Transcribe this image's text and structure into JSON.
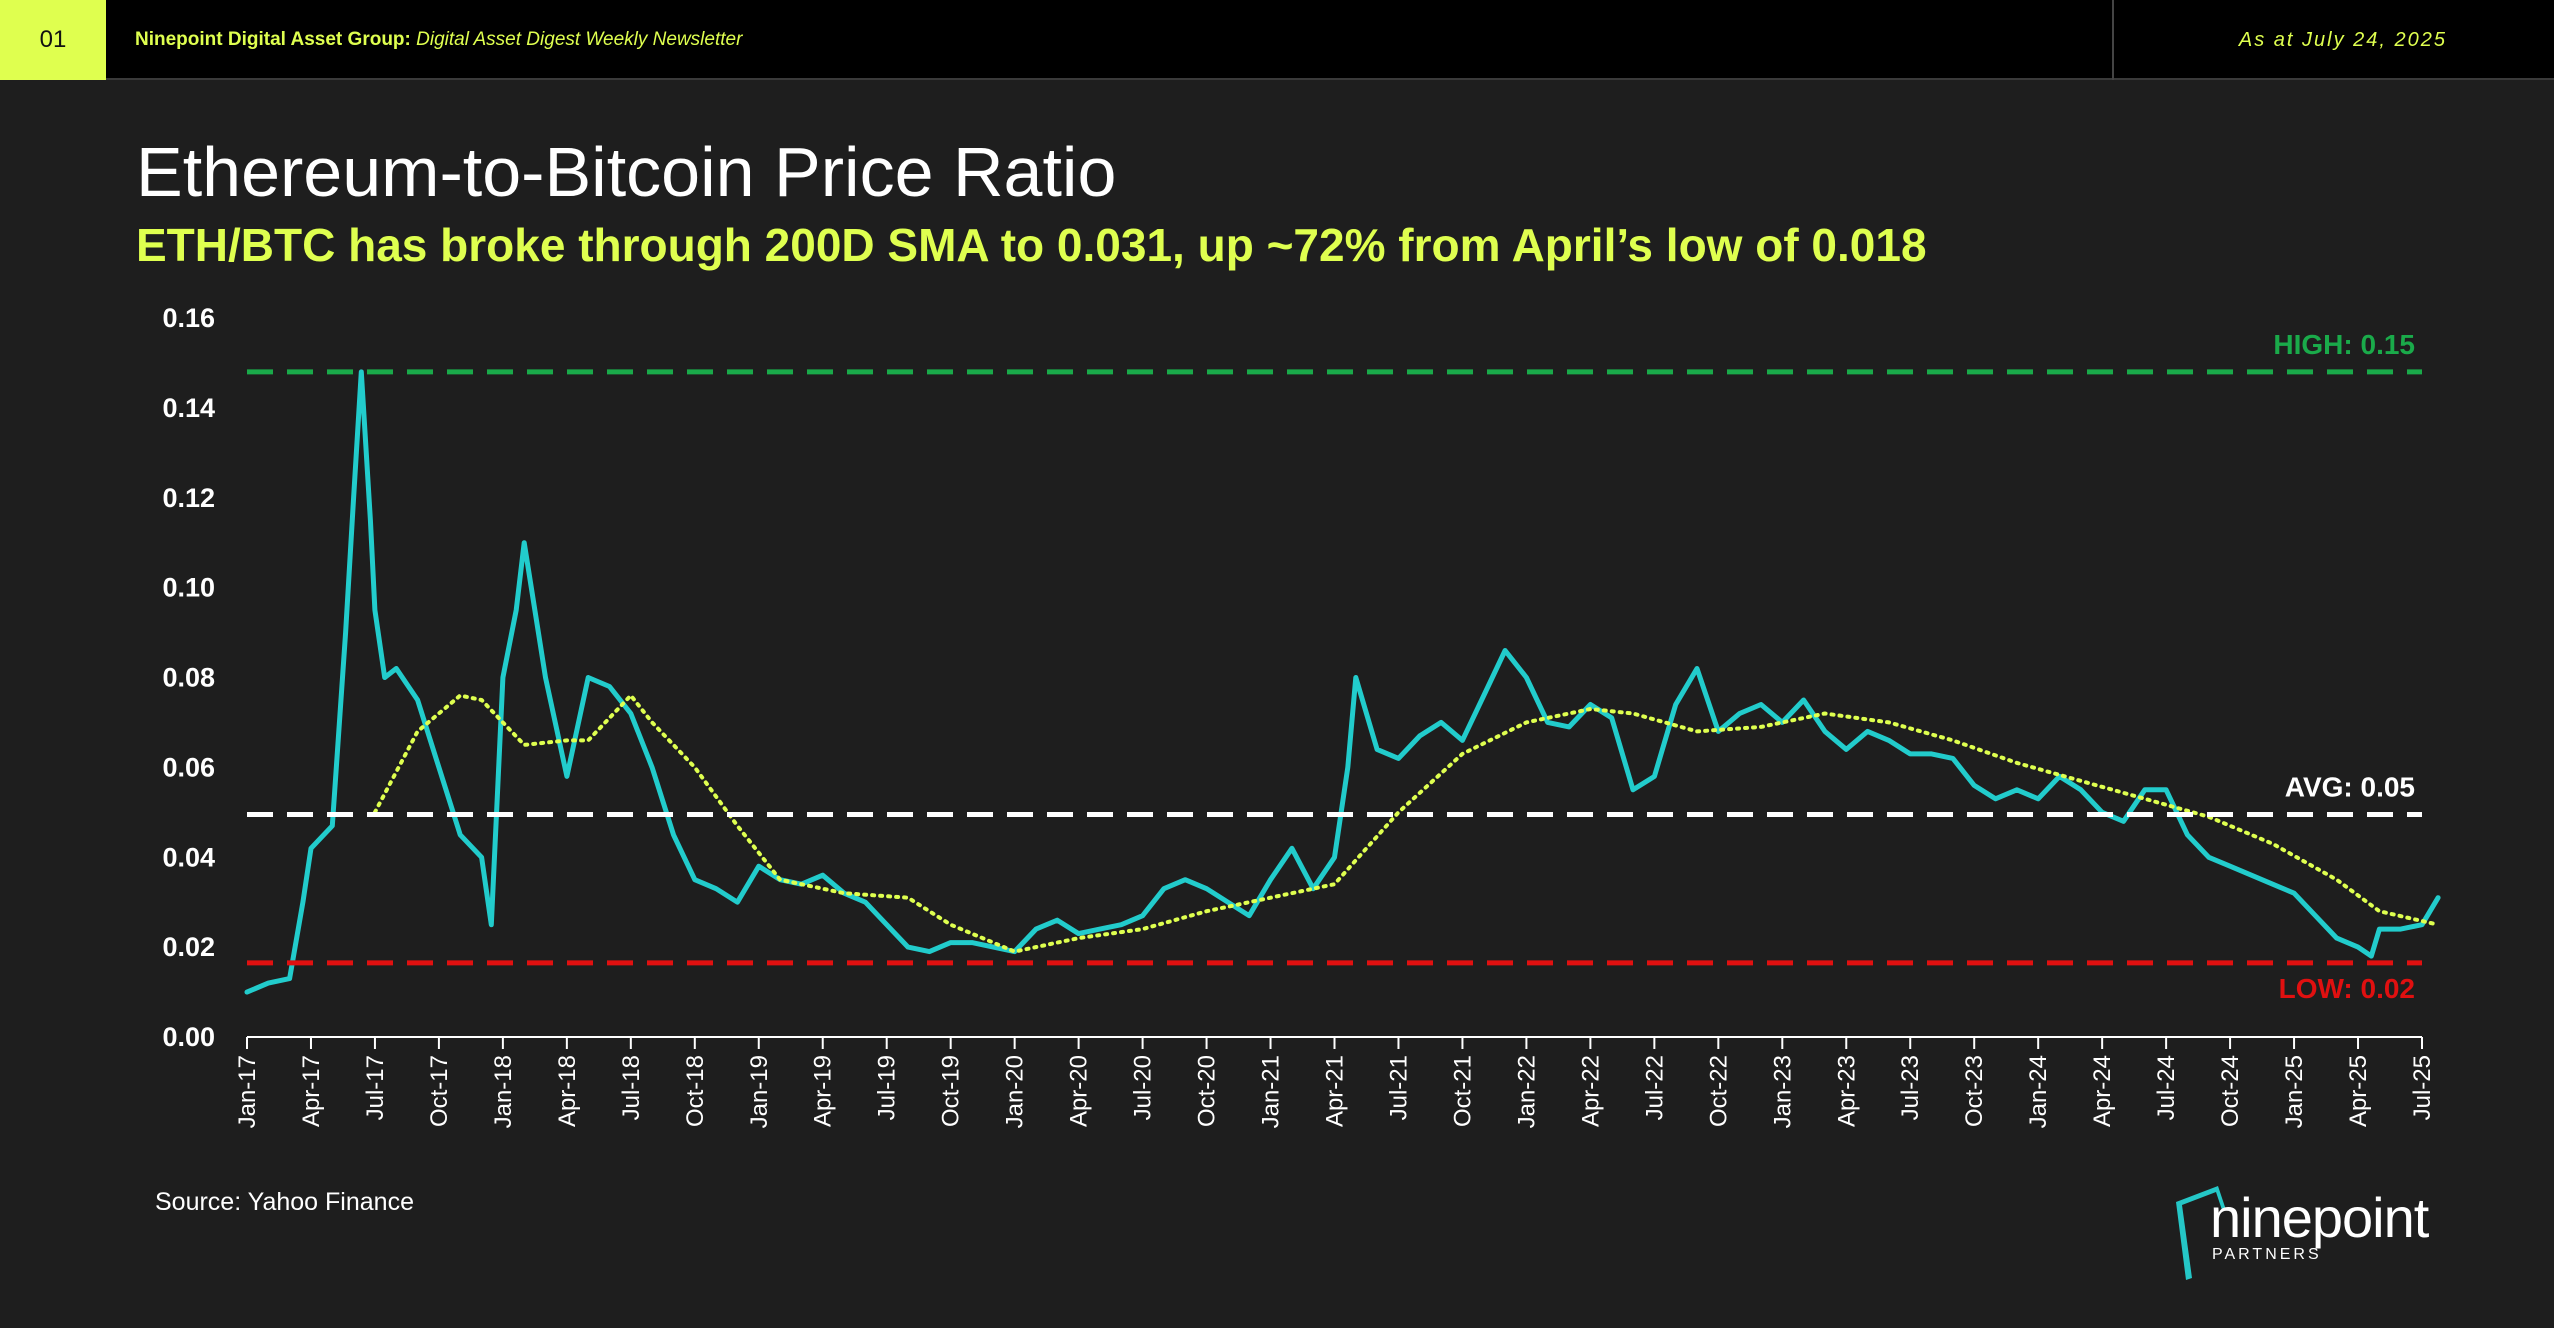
{
  "header": {
    "page_number": "01",
    "brand": "Ninepoint Digital Asset Group:",
    "newsletter": " Digital Asset Digest Weekly Newsletter",
    "date": "As at July 24, 2025"
  },
  "title": "Ethereum-to-Bitcoin Price Ratio",
  "subtitle": "ETH/BTC has broke through 200D SMA to 0.031, up ~72% from April’s low of 0.018",
  "source": "Source: Yahoo Finance",
  "logo": {
    "word": "ninepoint",
    "sub": "PARTNERS",
    "color": "#25c7c7"
  },
  "chart_data": {
    "type": "line",
    "title": "Ethereum-to-Bitcoin Price Ratio",
    "ylim": [
      0,
      0.16
    ],
    "yticks": [
      "0.00",
      "0.02",
      "0.04",
      "0.06",
      "0.08",
      "0.10",
      "0.12",
      "0.14",
      "0.16"
    ],
    "xlim": [
      "2017-01",
      "2025-07"
    ],
    "xtick_labels": [
      "Jan-17",
      "Apr-17",
      "Jul-17",
      "Oct-17",
      "Jan-18",
      "Apr-18",
      "Jul-18",
      "Oct-18",
      "Jan-19",
      "Apr-19",
      "Jul-19",
      "Oct-19",
      "Jan-20",
      "Apr-20",
      "Jul-20",
      "Oct-20",
      "Jan-21",
      "Apr-21",
      "Jul-21",
      "Oct-21",
      "Jan-22",
      "Apr-22",
      "Jul-22",
      "Oct-22",
      "Jan-23",
      "Apr-23",
      "Jul-23",
      "Oct-23",
      "Jan-24",
      "Apr-24",
      "Jul-24",
      "Oct-24",
      "Jan-25",
      "Apr-25",
      "Jul-25"
    ],
    "grid": false,
    "reference_lines": [
      {
        "label": "HIGH: 0.15",
        "value": 0.148,
        "color": "#1aaa4a"
      },
      {
        "label": "AVG: 0.05",
        "value": 0.0495,
        "color": "#ffffff"
      },
      {
        "label": "LOW: 0.02",
        "value": 0.0165,
        "color": "#e01010"
      }
    ],
    "series": [
      {
        "color": "#22cccc",
        "style": "solid",
        "points": [
          [
            "2017-01",
            0.01
          ],
          [
            "2017-02",
            0.012
          ],
          [
            "2017-03",
            0.013
          ],
          [
            "2017-03-20",
            0.03
          ],
          [
            "2017-04",
            0.042
          ],
          [
            "2017-05",
            0.047
          ],
          [
            "2017-05-20",
            0.09
          ],
          [
            "2017-06",
            0.12
          ],
          [
            "2017-06-12",
            0.148
          ],
          [
            "2017-06-25",
            0.115
          ],
          [
            "2017-07",
            0.095
          ],
          [
            "2017-07-15",
            0.08
          ],
          [
            "2017-08",
            0.082
          ],
          [
            "2017-09",
            0.075
          ],
          [
            "2017-10",
            0.06
          ],
          [
            "2017-11",
            0.045
          ],
          [
            "2017-12",
            0.04
          ],
          [
            "2017-12-15",
            0.025
          ],
          [
            "2018-01",
            0.08
          ],
          [
            "2018-01-20",
            0.095
          ],
          [
            "2018-02",
            0.11
          ],
          [
            "2018-03",
            0.08
          ],
          [
            "2018-04",
            0.058
          ],
          [
            "2018-05",
            0.08
          ],
          [
            "2018-06",
            0.078
          ],
          [
            "2018-07",
            0.072
          ],
          [
            "2018-08",
            0.06
          ],
          [
            "2018-09",
            0.045
          ],
          [
            "2018-10",
            0.035
          ],
          [
            "2018-11",
            0.033
          ],
          [
            "2018-12",
            0.03
          ],
          [
            "2019-01",
            0.038
          ],
          [
            "2019-02",
            0.035
          ],
          [
            "2019-03",
            0.034
          ],
          [
            "2019-04",
            0.036
          ],
          [
            "2019-05",
            0.032
          ],
          [
            "2019-06",
            0.03
          ],
          [
            "2019-07",
            0.025
          ],
          [
            "2019-08",
            0.02
          ],
          [
            "2019-09",
            0.019
          ],
          [
            "2019-10",
            0.021
          ],
          [
            "2019-11",
            0.021
          ],
          [
            "2019-12",
            0.02
          ],
          [
            "2020-01",
            0.019
          ],
          [
            "2020-02",
            0.024
          ],
          [
            "2020-03",
            0.026
          ],
          [
            "2020-04",
            0.023
          ],
          [
            "2020-05",
            0.024
          ],
          [
            "2020-06",
            0.025
          ],
          [
            "2020-07",
            0.027
          ],
          [
            "2020-08",
            0.033
          ],
          [
            "2020-09",
            0.035
          ],
          [
            "2020-10",
            0.033
          ],
          [
            "2020-11",
            0.03
          ],
          [
            "2020-12",
            0.027
          ],
          [
            "2021-01",
            0.035
          ],
          [
            "2021-02",
            0.042
          ],
          [
            "2021-03",
            0.033
          ],
          [
            "2021-04",
            0.04
          ],
          [
            "2021-04-20",
            0.06
          ],
          [
            "2021-05",
            0.08
          ],
          [
            "2021-06",
            0.064
          ],
          [
            "2021-07",
            0.062
          ],
          [
            "2021-08",
            0.067
          ],
          [
            "2021-09",
            0.07
          ],
          [
            "2021-10",
            0.066
          ],
          [
            "2021-11",
            0.076
          ],
          [
            "2021-12",
            0.086
          ],
          [
            "2022-01",
            0.08
          ],
          [
            "2022-02",
            0.07
          ],
          [
            "2022-03",
            0.069
          ],
          [
            "2022-04",
            0.074
          ],
          [
            "2022-05",
            0.071
          ],
          [
            "2022-06",
            0.055
          ],
          [
            "2022-07",
            0.058
          ],
          [
            "2022-08",
            0.074
          ],
          [
            "2022-09",
            0.082
          ],
          [
            "2022-10",
            0.068
          ],
          [
            "2022-11",
            0.072
          ],
          [
            "2022-12",
            0.074
          ],
          [
            "2023-01",
            0.07
          ],
          [
            "2023-02",
            0.075
          ],
          [
            "2023-03",
            0.068
          ],
          [
            "2023-04",
            0.064
          ],
          [
            "2023-05",
            0.068
          ],
          [
            "2023-06",
            0.066
          ],
          [
            "2023-07",
            0.063
          ],
          [
            "2023-08",
            0.063
          ],
          [
            "2023-09",
            0.062
          ],
          [
            "2023-10",
            0.056
          ],
          [
            "2023-11",
            0.053
          ],
          [
            "2023-12",
            0.055
          ],
          [
            "2024-01",
            0.053
          ],
          [
            "2024-02",
            0.058
          ],
          [
            "2024-03",
            0.055
          ],
          [
            "2024-04",
            0.05
          ],
          [
            "2024-05",
            0.048
          ],
          [
            "2024-06",
            0.055
          ],
          [
            "2024-07",
            0.055
          ],
          [
            "2024-08",
            0.045
          ],
          [
            "2024-09",
            0.04
          ],
          [
            "2024-10",
            0.038
          ],
          [
            "2024-11",
            0.036
          ],
          [
            "2024-12",
            0.034
          ],
          [
            "2025-01",
            0.032
          ],
          [
            "2025-02",
            0.027
          ],
          [
            "2025-03",
            0.022
          ],
          [
            "2025-04",
            0.02
          ],
          [
            "2025-04-20",
            0.018
          ],
          [
            "2025-05",
            0.024
          ],
          [
            "2025-06",
            0.024
          ],
          [
            "2025-07",
            0.025
          ],
          [
            "2025-07-24",
            0.031
          ]
        ]
      },
      {
        "color": "#dfff4f",
        "style": "dotted",
        "points": [
          [
            "2017-07",
            0.05
          ],
          [
            "2017-09",
            0.068
          ],
          [
            "2017-11",
            0.076
          ],
          [
            "2017-12",
            0.075
          ],
          [
            "2018-02",
            0.065
          ],
          [
            "2018-04",
            0.066
          ],
          [
            "2018-05",
            0.066
          ],
          [
            "2018-07",
            0.076
          ],
          [
            "2018-08",
            0.07
          ],
          [
            "2018-10",
            0.06
          ],
          [
            "2018-12",
            0.047
          ],
          [
            "2019-02",
            0.035
          ],
          [
            "2019-05",
            0.032
          ],
          [
            "2019-08",
            0.031
          ],
          [
            "2019-10",
            0.025
          ],
          [
            "2020-01",
            0.019
          ],
          [
            "2020-04",
            0.022
          ],
          [
            "2020-07",
            0.024
          ],
          [
            "2020-10",
            0.028
          ],
          [
            "2021-01",
            0.031
          ],
          [
            "2021-04",
            0.034
          ],
          [
            "2021-07",
            0.05
          ],
          [
            "2021-10",
            0.063
          ],
          [
            "2022-01",
            0.07
          ],
          [
            "2022-04",
            0.073
          ],
          [
            "2022-06",
            0.072
          ],
          [
            "2022-09",
            0.068
          ],
          [
            "2022-12",
            0.069
          ],
          [
            "2023-03",
            0.072
          ],
          [
            "2023-06",
            0.07
          ],
          [
            "2023-09",
            0.066
          ],
          [
            "2023-12",
            0.061
          ],
          [
            "2024-03",
            0.057
          ],
          [
            "2024-06",
            0.053
          ],
          [
            "2024-09",
            0.049
          ],
          [
            "2024-12",
            0.043
          ],
          [
            "2025-03",
            0.035
          ],
          [
            "2025-05",
            0.028
          ],
          [
            "2025-07-24",
            0.025
          ]
        ]
      }
    ]
  }
}
